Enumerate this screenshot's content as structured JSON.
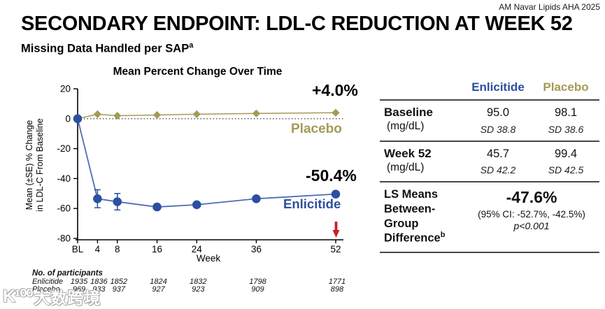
{
  "attribution": "AM Navar Lipids AHA 2025",
  "title": "SECONDARY ENDPOINT: LDL-C REDUCTION AT WEEK 52",
  "subtitle": {
    "text": "Missing Data Handled per SAP",
    "sup": "a"
  },
  "chart_data": {
    "type": "line",
    "title": "Mean Percent Change Over Time",
    "ylabel_line1": "Mean (±SE) % Change",
    "ylabel_line2": "in LDL-C From Baseline",
    "xlabel": "Week",
    "x_tick_labels": [
      "BL",
      "4",
      "8",
      "16",
      "24",
      "36",
      "52"
    ],
    "x_weeks": [
      0,
      4,
      8,
      16,
      24,
      36,
      52
    ],
    "y_ticks": [
      20,
      0,
      -20,
      -40,
      -60,
      -80
    ],
    "ylim": [
      -80,
      20
    ],
    "zero_reference_line": true,
    "legend_position": "inline-right",
    "series": [
      {
        "name": "Placebo",
        "marker": "diamond",
        "color": "#a59a55",
        "line_color": "#a59a55",
        "values": [
          0,
          3,
          2,
          2.5,
          3,
          3.5,
          4
        ],
        "se": [
          null,
          null,
          null,
          null,
          null,
          null,
          null
        ],
        "end_label": "+4.0%"
      },
      {
        "name": "Enlicitide",
        "marker": "circle",
        "color": "#2d4fa1",
        "line_color": "#4e6db6",
        "values": [
          0,
          -53.5,
          -55.5,
          -59,
          -57.5,
          -53.5,
          -50.4
        ],
        "se": [
          null,
          6,
          5.5,
          null,
          null,
          null,
          null
        ],
        "end_label": "-50.4%"
      }
    ],
    "annotations": {
      "placebo_change": "+4.0%",
      "placebo_label": "Placebo",
      "enlicitide_change": "-50.4%",
      "enlicitide_label": "Enlicitide"
    },
    "week52_arrow": {
      "week": 52,
      "color": "#c8202a"
    }
  },
  "participants": {
    "heading": "No. of participants",
    "rows": [
      {
        "label": "Enlicitide",
        "counts": [
          "1935",
          "1836",
          "1852",
          "1824",
          "1832",
          "1798",
          "1771"
        ]
      },
      {
        "label": "Placebo",
        "counts": [
          "969",
          "933",
          "937",
          "927",
          "923",
          "909",
          "898"
        ]
      }
    ]
  },
  "table": {
    "columns": [
      {
        "label": "Enlicitide",
        "color": "#2d4fa1"
      },
      {
        "label": "Placebo",
        "color": "#a59a55"
      }
    ],
    "rows": [
      {
        "label": "Baseline",
        "unit": "(mg/dL)",
        "enlicitide": "95.0",
        "enlicitide_sd": "SD 38.8",
        "placebo": "98.1",
        "placebo_sd": "SD 38.6"
      },
      {
        "label": "Week 52",
        "unit": "(mg/dL)",
        "enlicitide": "45.7",
        "enlicitide_sd": "SD 42.2",
        "placebo": "99.4",
        "placebo_sd": "SD 42.5"
      }
    ],
    "ls_means": {
      "label": "LS Means Between-Group Difference",
      "sup": "b",
      "value": "-47.6%",
      "ci": "(95% CI: -52.7%, -42.5%)",
      "p": "p<0.001"
    }
  },
  "watermark": {
    "logo": "K¹⁰⁰",
    "text": "大数跨境"
  },
  "colors": {
    "enlicitide": "#2d4fa1",
    "placebo": "#a59a55",
    "arrow_red": "#c8202a"
  }
}
